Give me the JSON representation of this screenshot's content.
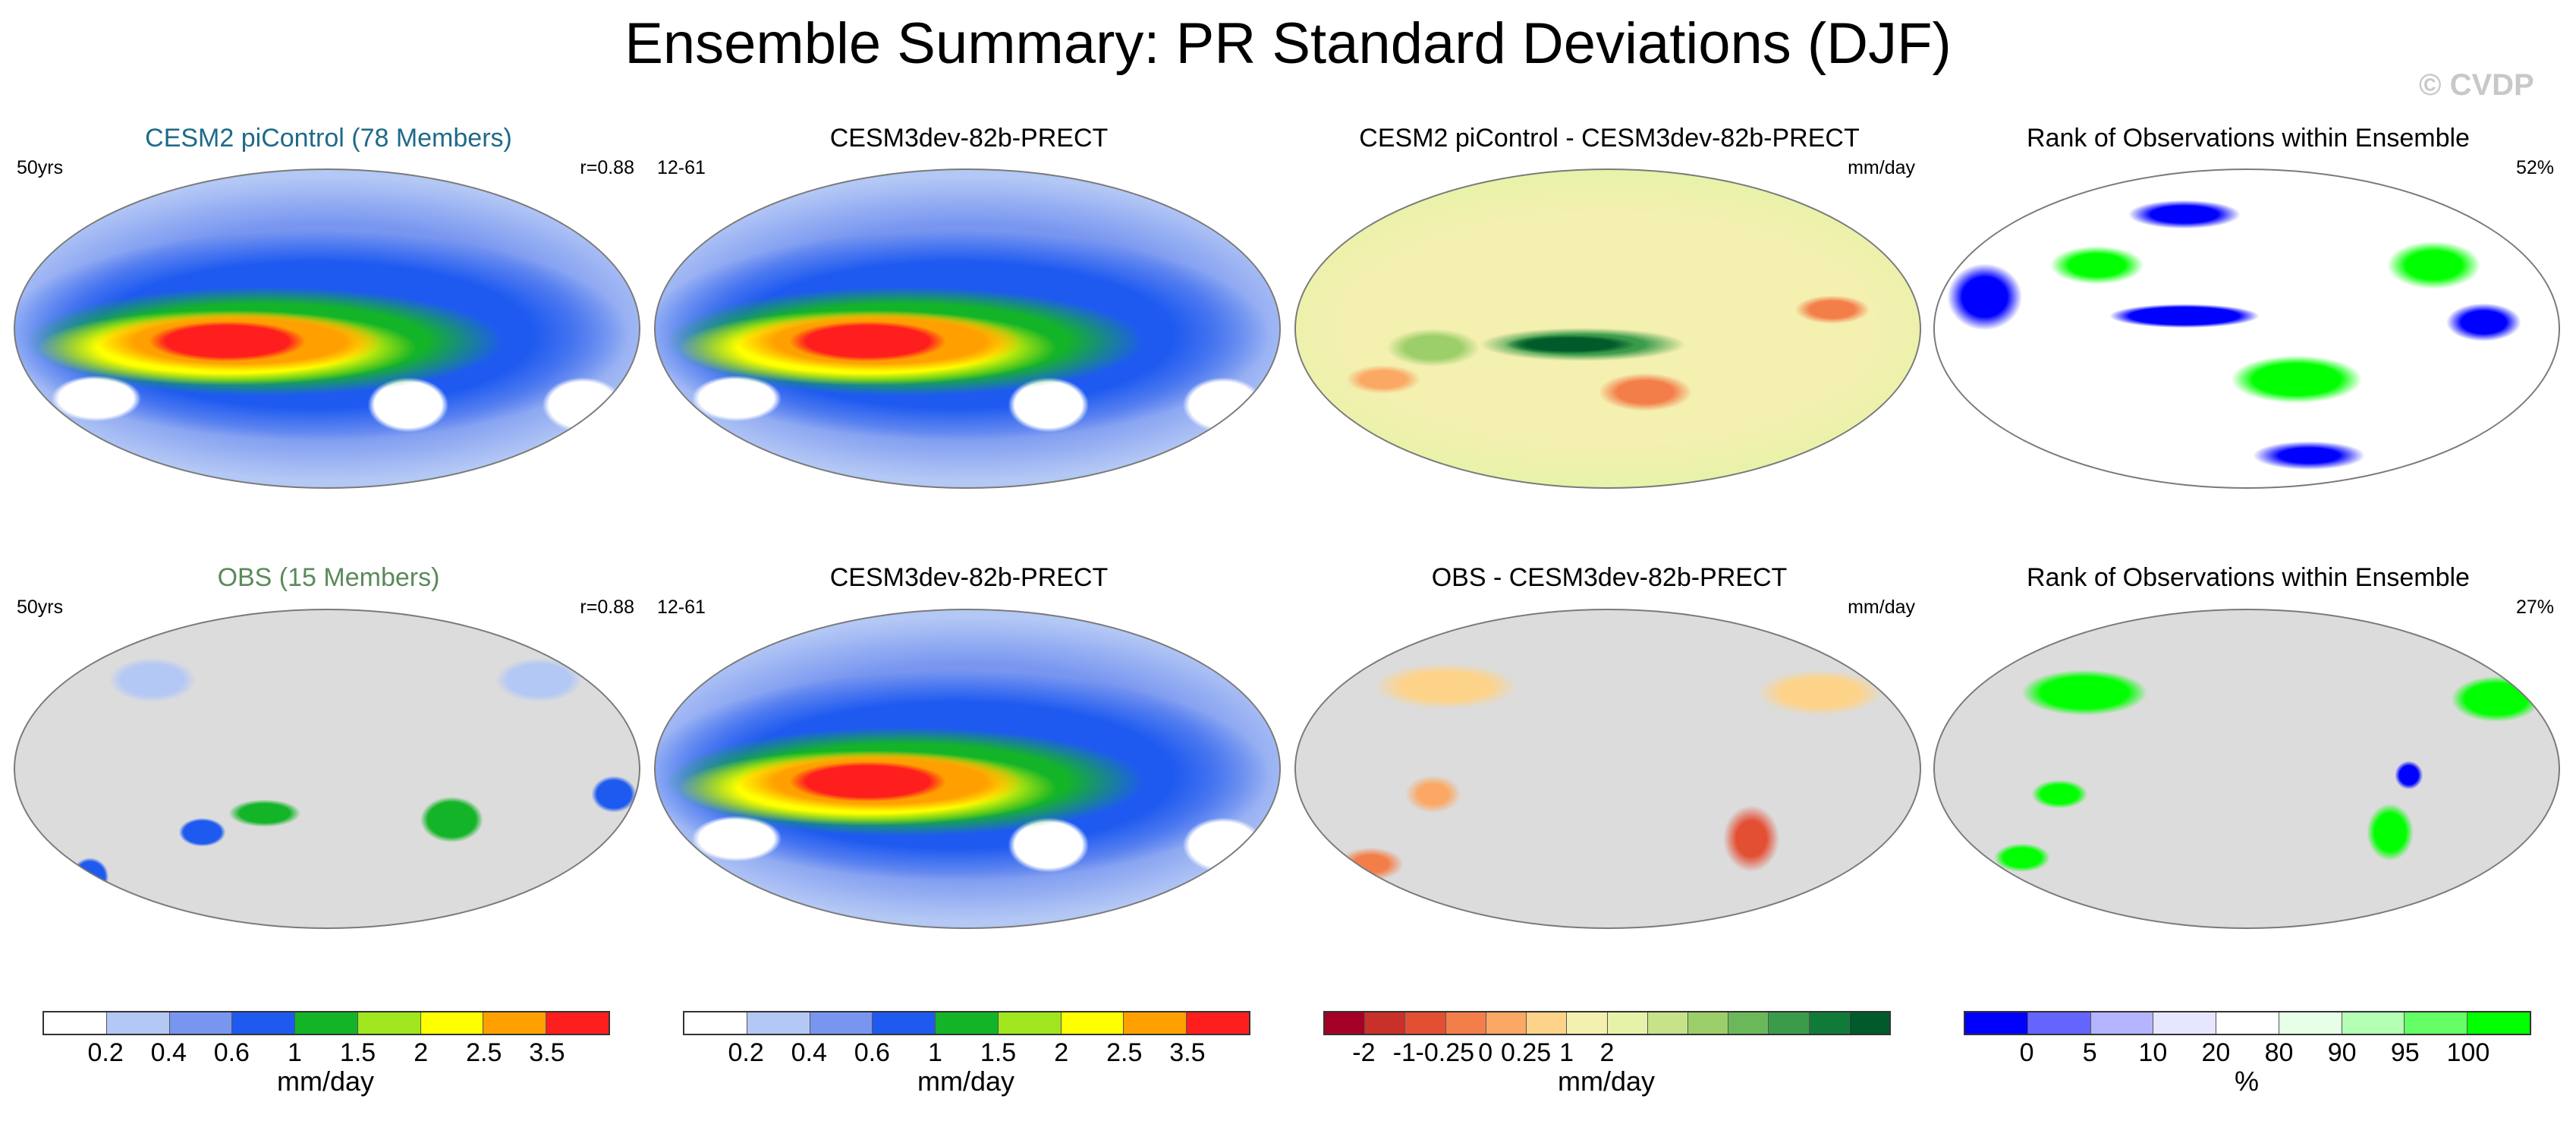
{
  "title": "Ensemble Summary: PR Standard Deviations (DJF)",
  "watermark": "© CVDP",
  "panels": [
    {
      "title": "CESM2 piControl (78 Members)",
      "title_color": "#1f6a8a",
      "left_label": "50yrs",
      "right_label": "r=0.88",
      "style": "precip-full"
    },
    {
      "title": "CESM3dev-82b-PRECT",
      "title_color": "#000000",
      "left_label": "12-61",
      "right_label": "",
      "style": "precip-full"
    },
    {
      "title": "CESM2 piControl - CESM3dev-82b-PRECT",
      "title_color": "#000000",
      "left_label": "",
      "right_label": "mm/day",
      "style": "diff-full"
    },
    {
      "title": "Rank of Observations within Ensemble",
      "title_color": "#000000",
      "left_label": "",
      "right_label": "52%",
      "style": "rank-full"
    },
    {
      "title": "OBS (15 Members)",
      "title_color": "#5a8a5a",
      "left_label": "50yrs",
      "right_label": "r=0.88",
      "style": "precip-land"
    },
    {
      "title": "CESM3dev-82b-PRECT",
      "title_color": "#000000",
      "left_label": "12-61",
      "right_label": "",
      "style": "precip-full"
    },
    {
      "title": "OBS - CESM3dev-82b-PRECT",
      "title_color": "#000000",
      "left_label": "",
      "right_label": "mm/day",
      "style": "diff-land"
    },
    {
      "title": "Rank of Observations within Ensemble",
      "title_color": "#000000",
      "left_label": "",
      "right_label": "27%",
      "style": "rank-land"
    }
  ],
  "colorbars": [
    {
      "colors": [
        "#ffffff",
        "#b4c8f5",
        "#7896f0",
        "#1e5af0",
        "#14b428",
        "#a0e61e",
        "#ffff00",
        "#ffa000",
        "#ff1e1e"
      ],
      "ticks": [
        "0.2",
        "0.4",
        "0.6",
        "1",
        "1.5",
        "2",
        "2.5",
        "3.5"
      ],
      "unit": "mm/day"
    },
    {
      "colors": [
        "#ffffff",
        "#b4c8f5",
        "#7896f0",
        "#1e5af0",
        "#14b428",
        "#a0e61e",
        "#ffff00",
        "#ffa000",
        "#ff1e1e"
      ],
      "ticks": [
        "0.2",
        "0.4",
        "0.6",
        "1",
        "1.5",
        "2",
        "2.5",
        "3.5"
      ],
      "unit": "mm/day"
    },
    {
      "colors": [
        "#a50026",
        "#c9302a",
        "#e34f33",
        "#f47e4a",
        "#fba865",
        "#fdd38a",
        "#f4f0b0",
        "#e6f2a8",
        "#c6e389",
        "#9ccf69",
        "#6bb85a",
        "#3a9c4a",
        "#107a38",
        "#005a2a"
      ],
      "ticks": [
        "-2",
        "-1",
        "-0.25",
        "0",
        "0.25",
        "1",
        "2"
      ],
      "unit": "mm/day"
    },
    {
      "colors": [
        "#0000ff",
        "#6464ff",
        "#b4b4ff",
        "#e6e6ff",
        "#ffffff",
        "#e6ffe6",
        "#b4ffb4",
        "#64ff64",
        "#00ff00"
      ],
      "ticks": [
        "0",
        "5",
        "10",
        "20",
        "80",
        "90",
        "95",
        "100"
      ],
      "unit": "%"
    }
  ]
}
